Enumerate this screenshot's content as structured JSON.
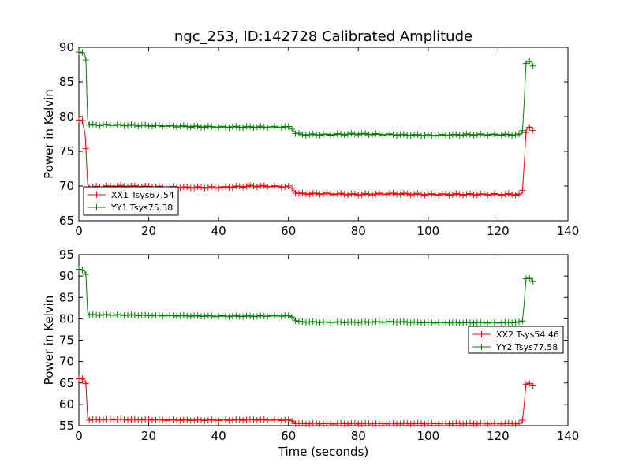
{
  "figure_title": "ngc_253, ID:142728 Calibrated Amplitude",
  "chart_data": [
    {
      "type": "line",
      "title": "ngc_253, ID:142728 Calibrated Amplitude",
      "xlabel": "",
      "ylabel": "Power in Kelvin",
      "xlim": [
        0,
        140
      ],
      "ylim": [
        65,
        90
      ],
      "xticks": [
        "0",
        "20",
        "40",
        "60",
        "80",
        "100",
        "120",
        "140"
      ],
      "yticks": [
        "65",
        "70",
        "75",
        "80",
        "85",
        "90"
      ],
      "legend_position": "lower-left",
      "series": [
        {
          "name": "XX1 Tsys67.54",
          "color": "#ff0000",
          "points": [
            [
              0,
              79.5
            ],
            [
              1,
              79.3
            ],
            [
              1.8,
              77.5
            ],
            [
              2.5,
              70.3
            ],
            [
              3,
              69.8
            ],
            [
              10,
              70
            ],
            [
              20,
              69.9
            ],
            [
              30,
              69.8
            ],
            [
              40,
              69.8
            ],
            [
              50,
              70
            ],
            [
              60,
              69.9
            ],
            [
              61,
              69.7
            ],
            [
              62,
              69.1
            ],
            [
              63,
              68.9
            ],
            [
              70,
              68.9
            ],
            [
              80,
              68.8
            ],
            [
              90,
              68.9
            ],
            [
              100,
              68.8
            ],
            [
              110,
              68.8
            ],
            [
              120,
              68.8
            ],
            [
              126.5,
              68.8
            ],
            [
              127,
              69.3
            ],
            [
              127.5,
              73.2
            ],
            [
              128,
              77.8
            ],
            [
              128.5,
              78.5
            ],
            [
              129.5,
              78.5
            ],
            [
              130,
              77.9
            ]
          ]
        },
        {
          "name": "YY1 Tsys75.38",
          "color": "#008000",
          "points": [
            [
              0,
              89.2
            ],
            [
              1.5,
              89.2
            ],
            [
              2,
              88.3
            ],
            [
              2.5,
              79.5
            ],
            [
              3,
              78.8
            ],
            [
              10,
              78.8
            ],
            [
              20,
              78.7
            ],
            [
              30,
              78.6
            ],
            [
              40,
              78.5
            ],
            [
              50,
              78.5
            ],
            [
              60,
              78.5
            ],
            [
              61,
              78.3
            ],
            [
              62,
              77.6
            ],
            [
              64,
              77.4
            ],
            [
              70,
              77.4
            ],
            [
              80,
              77.5
            ],
            [
              90,
              77.4
            ],
            [
              100,
              77.3
            ],
            [
              110,
              77.4
            ],
            [
              120,
              77.4
            ],
            [
              126.5,
              77.4
            ],
            [
              127,
              78
            ],
            [
              127.5,
              82.2
            ],
            [
              128,
              87.8
            ],
            [
              128.5,
              88
            ],
            [
              129.5,
              87.9
            ],
            [
              130,
              87.2
            ]
          ]
        }
      ]
    },
    {
      "type": "line",
      "title": "",
      "xlabel": "Time (seconds)",
      "ylabel": "Power in Kelvin",
      "xlim": [
        0,
        140
      ],
      "ylim": [
        55,
        95
      ],
      "xticks": [
        "0",
        "20",
        "40",
        "60",
        "80",
        "100",
        "120",
        "140"
      ],
      "yticks": [
        "55",
        "60",
        "65",
        "70",
        "75",
        "80",
        "85",
        "90",
        "95"
      ],
      "legend_position": "center-right",
      "series": [
        {
          "name": "XX2 Tsys54.46",
          "color": "#ff0000",
          "points": [
            [
              0,
              66
            ],
            [
              1.5,
              65.8
            ],
            [
              2,
              64.9
            ],
            [
              2.5,
              57
            ],
            [
              3,
              56.4
            ],
            [
              10,
              56.5
            ],
            [
              20,
              56.4
            ],
            [
              30,
              56.3
            ],
            [
              40,
              56.3
            ],
            [
              50,
              56.4
            ],
            [
              60,
              56.3
            ],
            [
              61,
              56.1
            ],
            [
              62,
              55.6
            ],
            [
              63,
              55.5
            ],
            [
              70,
              55.5
            ],
            [
              80,
              55.5
            ],
            [
              90,
              55.5
            ],
            [
              100,
              55.5
            ],
            [
              110,
              55.5
            ],
            [
              120,
              55.5
            ],
            [
              126.5,
              55.5
            ],
            [
              127,
              56.2
            ],
            [
              127.5,
              60
            ],
            [
              128,
              64.8
            ],
            [
              128.5,
              65
            ],
            [
              129.5,
              64.8
            ],
            [
              130,
              64.2
            ]
          ]
        },
        {
          "name": "YY2 Tsys77.58",
          "color": "#008000",
          "points": [
            [
              0,
              91.5
            ],
            [
              1.5,
              91.2
            ],
            [
              2,
              90.5
            ],
            [
              2.5,
              81.5
            ],
            [
              3,
              80.9
            ],
            [
              10,
              80.9
            ],
            [
              20,
              80.8
            ],
            [
              30,
              80.7
            ],
            [
              40,
              80.6
            ],
            [
              50,
              80.6
            ],
            [
              60,
              80.7
            ],
            [
              61,
              80.5
            ],
            [
              62,
              79.6
            ],
            [
              63,
              79.3
            ],
            [
              70,
              79.2
            ],
            [
              80,
              79.2
            ],
            [
              90,
              79.3
            ],
            [
              100,
              79.1
            ],
            [
              110,
              79.1
            ],
            [
              120,
              79.1
            ],
            [
              126.5,
              79.2
            ],
            [
              127,
              79.5
            ],
            [
              127.5,
              83.7
            ],
            [
              128,
              89.5
            ],
            [
              128.5,
              89.5
            ],
            [
              129.5,
              89.3
            ],
            [
              130,
              88.6
            ]
          ]
        }
      ]
    }
  ]
}
